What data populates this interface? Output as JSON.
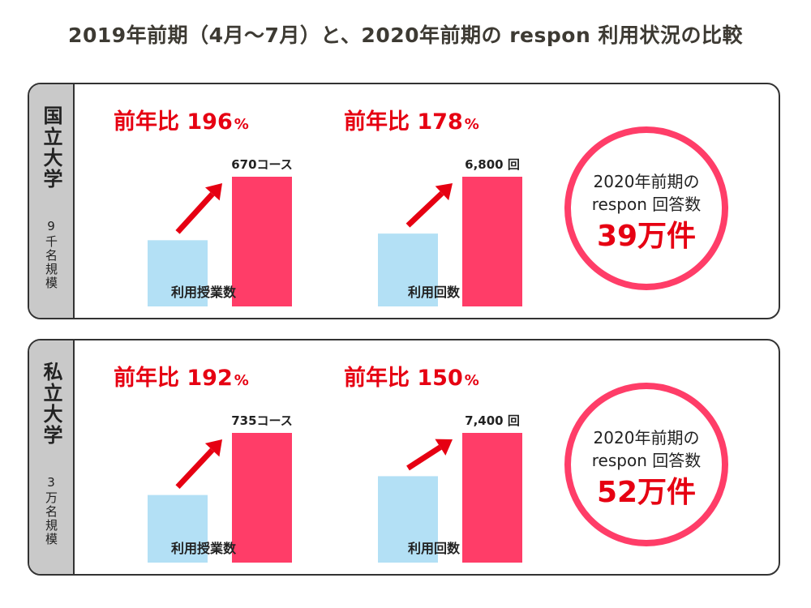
{
  "title": "2019年前期（4月〜7月）と、2020年前期の respon 利用状況の比較",
  "colors": {
    "bar_2019": "#b3e0f5",
    "bar_2020": "#ff3d68",
    "arrow": "#e60012",
    "accent": "#e60012",
    "circle": "#ff3d68",
    "side": "#c9c9c9"
  },
  "chart_data": [
    {
      "type": "bar",
      "group": "国立大学",
      "group_sub": "9千名規模",
      "metrics": [
        {
          "label": "利用授業数",
          "ratio_label": "前年比 196",
          "ratio_pct": "%",
          "ratio": 1.96,
          "series": [
            {
              "name": "",
              "value": 342
            },
            {
              "name": "",
              "value": 670
            }
          ],
          "value_label": "670コース"
        },
        {
          "label": "利用回数",
          "ratio_label": "前年比 178",
          "ratio_pct": "%",
          "ratio": 1.78,
          "series": [
            {
              "name": "",
              "value": 3820
            },
            {
              "name": "",
              "value": 6800
            }
          ],
          "value_label": "6,800 回"
        }
      ],
      "circle": {
        "line1": "2020年前期の",
        "line2": "respon 回答数",
        "count": "39万件"
      }
    },
    {
      "type": "bar",
      "group": "私立大学",
      "group_sub": "3万名規模",
      "metrics": [
        {
          "label": "利用授業数",
          "ratio_label": "前年比 192",
          "ratio_pct": "%",
          "ratio": 1.92,
          "series": [
            {
              "name": "",
              "value": 383
            },
            {
              "name": "",
              "value": 735
            }
          ],
          "value_label": "735コース"
        },
        {
          "label": "利用回数",
          "ratio_label": "前年比 150",
          "ratio_pct": "%",
          "ratio": 1.5,
          "series": [
            {
              "name": "",
              "value": 4930
            },
            {
              "name": "",
              "value": 7400
            }
          ],
          "value_label": "7,400 回"
        }
      ],
      "circle": {
        "line1": "2020年前期の",
        "line2": "respon 回答数",
        "count": "52万件"
      }
    }
  ]
}
